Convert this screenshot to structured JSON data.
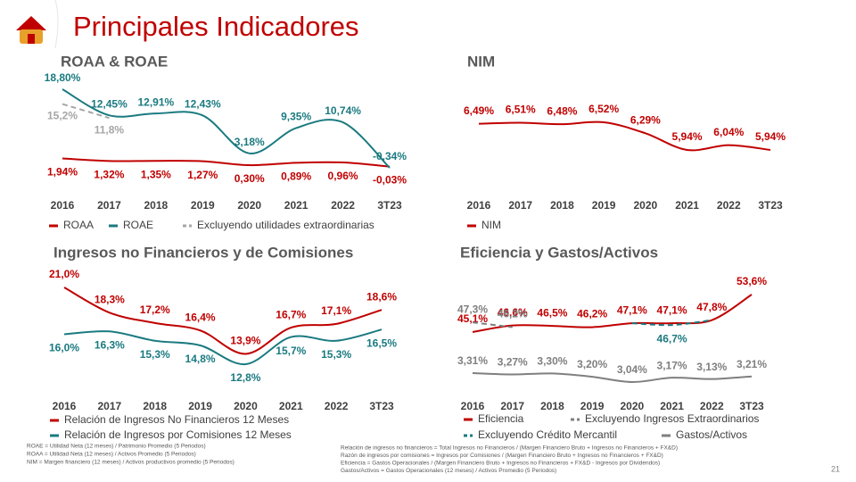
{
  "header": {
    "title": "Principales Indicadores",
    "page": "21"
  },
  "footnotes": {
    "left": [
      "ROAE = Utilidad Neta (12 meses) / Patrimonio Promedio (5 Periodos)",
      "ROAA = Utilidad Neta (12 meses) / Activos Promedio (5 Periodos)",
      "NIM = Margen financiero (12 meses) / Activos productivos promedio (5 Periodos)"
    ],
    "right": [
      "Relación de ingresos no financieros = Total Ingresos no Financieros / (Margen Financiero Bruto + Ingresos no Financieros + FX&D)",
      "Razón de ingresos por comisiones = Ingresos por Comisiones / (Margen Financiero Bruto + Ingresos no Financieros + FX&D)",
      "Eficiencia = Gastos Operacionales / (Margen Financiero Bruto + Ingresos no Financieros + FX&D - Ingresos por Dividendos)",
      "Gastos/Activos = Gastos Operacionales (12 meses) / Activos Promedio (5 Periodos)"
    ]
  },
  "chart_data": [
    {
      "type": "line",
      "title": "ROAA & ROAE",
      "categories": [
        "2016",
        "2017",
        "2018",
        "2019",
        "2020",
        "2021",
        "2022",
        "3T23"
      ],
      "series": [
        {
          "name": "ROAA",
          "color": "#c00000",
          "values": [
            1.94,
            1.32,
            1.35,
            1.27,
            0.3,
            0.89,
            0.96,
            -0.03
          ],
          "value_labels": [
            "1,94%",
            "1,32%",
            "1,35%",
            "1,27%",
            "0,30%",
            "0,89%",
            "0,96%",
            "-0,03%"
          ]
        },
        {
          "name": "ROAE",
          "color": "#1a7a80",
          "values": [
            18.8,
            12.45,
            12.91,
            12.43,
            3.18,
            9.35,
            10.74,
            -0.34
          ],
          "value_labels": [
            "18,80%",
            "12,45%",
            "12,91%",
            "12,43%",
            "3,18%",
            "9,35%",
            "10,74%",
            "-0,34%"
          ]
        },
        {
          "name": "Excluyendo utilidades extraordinarias",
          "color": "#a6a6a6",
          "dash": true,
          "values": [
            15.2,
            11.8,
            null,
            null,
            null,
            null,
            null,
            null
          ],
          "value_labels": [
            "15,2%",
            "11,8%",
            null,
            null,
            null,
            null,
            null,
            null
          ]
        }
      ]
    },
    {
      "type": "line",
      "title": "NIM",
      "categories": [
        "2016",
        "2017",
        "2018",
        "2019",
        "2020",
        "2021",
        "2022",
        "3T23"
      ],
      "series": [
        {
          "name": "NIM",
          "color": "#c00000",
          "values": [
            6.49,
            6.51,
            6.48,
            6.52,
            6.29,
            5.94,
            6.04,
            5.94
          ],
          "value_labels": [
            "6,49%",
            "6,51%",
            "6,48%",
            "6,52%",
            "6,29%",
            "5,94%",
            "6,04%",
            "5,94%"
          ]
        }
      ]
    },
    {
      "type": "line",
      "title": "Ingresos no Financieros y de Comisiones",
      "categories": [
        "2016",
        "2017",
        "2018",
        "2019",
        "2020",
        "2021",
        "2022",
        "3T23"
      ],
      "series": [
        {
          "name": "Relación de Ingresos No Financieros  12 Meses",
          "color": "#c00000",
          "values": [
            21.0,
            18.3,
            17.2,
            16.4,
            13.9,
            16.7,
            17.1,
            18.6
          ],
          "value_labels": [
            "21,0%",
            "18,3%",
            "17,2%",
            "16,4%",
            "13,9%",
            "16,7%",
            "17,1%",
            "18,6%"
          ]
        },
        {
          "name": "Relación de Ingresos por Comisiones  12 Meses",
          "color": "#1a7a80",
          "values": [
            16.0,
            16.3,
            15.3,
            14.8,
            12.8,
            15.7,
            15.3,
            16.5
          ],
          "value_labels": [
            "16,0%",
            "16,3%",
            "15,3%",
            "14,8%",
            "12,8%",
            "15,7%",
            "15,3%",
            "16,5%"
          ]
        }
      ]
    },
    {
      "type": "line",
      "title": "Eficiencia y Gastos/Activos",
      "categories": [
        "2016",
        "2017",
        "2018",
        "2019",
        "2020",
        "2021",
        "2022",
        "3T23"
      ],
      "series": [
        {
          "name": "Eficiencia",
          "color": "#c00000",
          "values": [
            45.1,
            46.6,
            46.5,
            46.2,
            47.1,
            47.1,
            47.8,
            53.6
          ],
          "value_labels": [
            "45,1%",
            "46,6%",
            "46,5%",
            "46,2%",
            "47,1%",
            "47,1%",
            "47,8%",
            "53,6%"
          ]
        },
        {
          "name": "Excluyendo Ingresos Extraordinarios",
          "color": "#7f7f7f",
          "dash": true,
          "values": [
            47.3,
            46.2,
            null,
            null,
            null,
            null,
            null,
            null
          ],
          "value_labels": [
            "47,3%",
            "46,2%",
            null,
            null,
            null,
            null,
            null,
            null
          ]
        },
        {
          "name": "Excluyendo Crédito Mercantil",
          "color": "#1a7a80",
          "dash": true,
          "values": [
            null,
            null,
            null,
            null,
            47.1,
            46.7,
            47.8,
            null
          ],
          "value_labels": [
            null,
            null,
            null,
            null,
            null,
            "46,7%",
            null,
            null
          ]
        },
        {
          "name": "Gastos/Activos",
          "color": "#7f7f7f",
          "axis": "y2",
          "values": [
            3.31,
            3.27,
            3.3,
            3.2,
            3.04,
            3.17,
            3.13,
            3.21
          ],
          "value_labels": [
            "3,31%",
            "3,27%",
            "3,30%",
            "3,20%",
            "3,04%",
            "3,17%",
            "3,13%",
            "3,21%"
          ]
        }
      ]
    }
  ]
}
